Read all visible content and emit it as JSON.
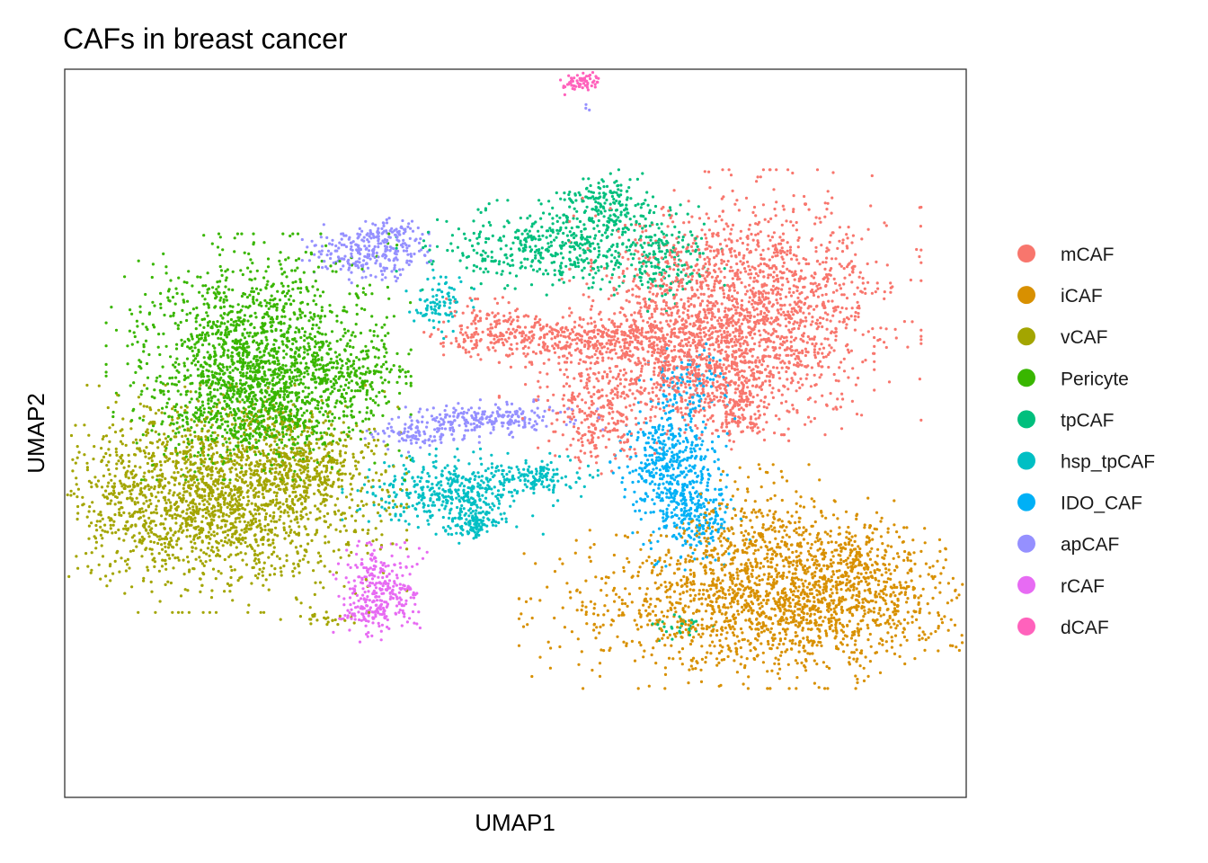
{
  "chart_data": {
    "type": "scatter",
    "title": "CAFs in breast cancer",
    "xlabel": "UMAP1",
    "ylabel": "UMAP2",
    "xlim": [
      -10,
      10
    ],
    "ylim": [
      -10,
      10
    ],
    "grid": false,
    "axis_ticks": false,
    "legend_position": "right",
    "series": [
      {
        "name": "mCAF",
        "color": "#F8766D",
        "clusters": [
          {
            "cx": 5.1,
            "cy": 3.6,
            "sx": 1.5,
            "sy": 1.4,
            "n": 1600
          },
          {
            "cx": 3.8,
            "cy": 1.9,
            "sx": 1.6,
            "sy": 0.9,
            "n": 900
          },
          {
            "cx": 1.6,
            "cy": 2.6,
            "sx": 1.0,
            "sy": 0.25,
            "n": 300
          },
          {
            "cx": -0.6,
            "cy": 2.8,
            "sx": 0.55,
            "sy": 0.35,
            "n": 180
          },
          {
            "cx": 1.8,
            "cy": 0.3,
            "sx": 0.5,
            "sy": 0.6,
            "n": 180
          },
          {
            "cx": 5.0,
            "cy": 0.7,
            "sx": 0.3,
            "sy": 0.5,
            "n": 120
          }
        ]
      },
      {
        "name": "iCAF",
        "color": "#D89000",
        "clusters": [
          {
            "cx": 5.8,
            "cy": -4.8,
            "sx": 2.2,
            "sy": 0.85,
            "n": 1500
          },
          {
            "cx": 5.3,
            "cy": -3.2,
            "sx": 0.9,
            "sy": 0.9,
            "n": 400
          },
          {
            "cx": 7.6,
            "cy": -3.6,
            "sx": 0.7,
            "sy": 0.7,
            "n": 300
          }
        ]
      },
      {
        "name": "vCAF",
        "color": "#A3A500",
        "clusters": [
          {
            "cx": -6.7,
            "cy": -1.8,
            "sx": 1.65,
            "sy": 1.2,
            "n": 2000
          },
          {
            "cx": -4.7,
            "cy": -0.9,
            "sx": 0.7,
            "sy": 0.7,
            "n": 300
          },
          {
            "cx": -4.3,
            "cy": -5.1,
            "sx": 0.35,
            "sy": 0.08,
            "n": 25
          }
        ]
      },
      {
        "name": "Pericyte",
        "color": "#39B600",
        "clusters": [
          {
            "cx": -5.7,
            "cy": 2.1,
            "sx": 1.3,
            "sy": 1.3,
            "n": 1600
          },
          {
            "cx": -5.8,
            "cy": 0.5,
            "sx": 1.0,
            "sy": 0.6,
            "n": 400
          },
          {
            "cx": -3.6,
            "cy": 1.6,
            "sx": 0.5,
            "sy": 0.45,
            "n": 150
          }
        ]
      },
      {
        "name": "tpCAF",
        "color": "#00BF7D",
        "clusters": [
          {
            "cx": 1.0,
            "cy": 5.1,
            "sx": 1.4,
            "sy": 0.5,
            "n": 500
          },
          {
            "cx": 2.0,
            "cy": 6.2,
            "sx": 0.55,
            "sy": 0.4,
            "n": 200
          },
          {
            "cx": 3.3,
            "cy": 4.6,
            "sx": 0.4,
            "sy": 0.5,
            "n": 120
          },
          {
            "cx": 3.6,
            "cy": -5.3,
            "sx": 0.3,
            "sy": 0.2,
            "n": 30
          }
        ]
      },
      {
        "name": "hsp_tpCAF",
        "color": "#00BFC4",
        "clusters": [
          {
            "cx": -1.5,
            "cy": -1.6,
            "sx": 0.9,
            "sy": 0.45,
            "n": 420
          },
          {
            "cx": -0.9,
            "cy": -2.5,
            "sx": 0.25,
            "sy": 0.2,
            "n": 100
          },
          {
            "cx": 0.4,
            "cy": -1.2,
            "sx": 0.55,
            "sy": 0.25,
            "n": 130
          },
          {
            "cx": -1.7,
            "cy": 3.6,
            "sx": 0.3,
            "sy": 0.4,
            "n": 90
          }
        ]
      },
      {
        "name": "IDO_CAF",
        "color": "#00B0F6",
        "clusters": [
          {
            "cx": 3.4,
            "cy": -0.8,
            "sx": 0.5,
            "sy": 0.7,
            "n": 400
          },
          {
            "cx": 3.9,
            "cy": -2.2,
            "sx": 0.5,
            "sy": 0.6,
            "n": 250
          },
          {
            "cx": 3.9,
            "cy": 1.3,
            "sx": 0.45,
            "sy": 0.5,
            "n": 100
          }
        ]
      },
      {
        "name": "apCAF",
        "color": "#9590FF",
        "clusters": [
          {
            "cx": -3.3,
            "cy": 5.0,
            "sx": 0.55,
            "sy": 0.35,
            "n": 250
          },
          {
            "cx": -2.7,
            "cy": 5.5,
            "sx": 0.3,
            "sy": 0.2,
            "n": 60
          },
          {
            "cx": -0.4,
            "cy": 0.4,
            "sx": 0.9,
            "sy": 0.2,
            "n": 220
          },
          {
            "cx": -2.1,
            "cy": 0.0,
            "sx": 0.5,
            "sy": 0.2,
            "n": 100
          },
          {
            "cx": 1.6,
            "cy": 8.9,
            "sx": 0.03,
            "sy": 0.05,
            "n": 3
          }
        ]
      },
      {
        "name": "rCAF",
        "color": "#E76BF3",
        "clusters": [
          {
            "cx": -3.0,
            "cy": -4.3,
            "sx": 0.4,
            "sy": 0.55,
            "n": 280
          },
          {
            "cx": -3.3,
            "cy": -5.0,
            "sx": 0.35,
            "sy": 0.1,
            "n": 50
          }
        ]
      },
      {
        "name": "dCAF",
        "color": "#FF62BC",
        "clusters": [
          {
            "cx": 1.4,
            "cy": 9.6,
            "sx": 0.2,
            "sy": 0.12,
            "n": 65
          }
        ]
      }
    ]
  }
}
